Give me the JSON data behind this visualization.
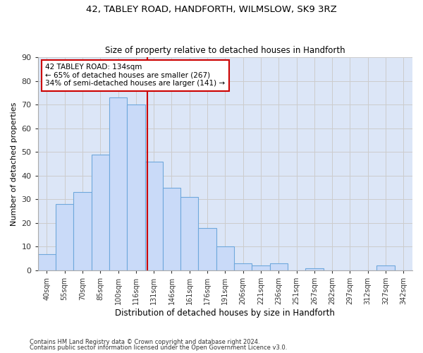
{
  "title": "42, TABLEY ROAD, HANDFORTH, WILMSLOW, SK9 3RZ",
  "subtitle": "Size of property relative to detached houses in Handforth",
  "xlabel": "Distribution of detached houses by size in Handforth",
  "ylabel": "Number of detached properties",
  "bar_color": "#c9daf8",
  "bar_edge_color": "#6fa8dc",
  "categories": [
    "40sqm",
    "55sqm",
    "70sqm",
    "85sqm",
    "100sqm",
    "116sqm",
    "131sqm",
    "146sqm",
    "161sqm",
    "176sqm",
    "191sqm",
    "206sqm",
    "221sqm",
    "236sqm",
    "251sqm",
    "267sqm",
    "282sqm",
    "297sqm",
    "312sqm",
    "327sqm",
    "342sqm"
  ],
  "values": [
    7,
    28,
    33,
    49,
    73,
    70,
    46,
    35,
    31,
    18,
    10,
    3,
    2,
    3,
    0,
    1,
    0,
    0,
    0,
    2,
    0
  ],
  "vline_x": 5.65,
  "vline_color": "#cc0000",
  "annotation_line1": "42 TABLEY ROAD: 134sqm",
  "annotation_line2": "← 65% of detached houses are smaller (267)",
  "annotation_line3": "34% of semi-detached houses are larger (141) →",
  "annotation_box_color": "#ffffff",
  "annotation_box_edge": "#cc0000",
  "ylim": [
    0,
    90
  ],
  "yticks": [
    0,
    10,
    20,
    30,
    40,
    50,
    60,
    70,
    80,
    90
  ],
  "grid_color": "#cccccc",
  "bg_color": "#dce6f7",
  "footer1": "Contains HM Land Registry data © Crown copyright and database right 2024.",
  "footer2": "Contains public sector information licensed under the Open Government Licence v3.0."
}
